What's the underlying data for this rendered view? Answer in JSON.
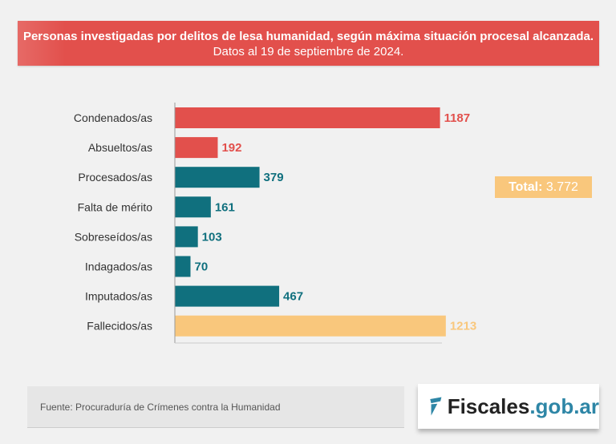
{
  "title": {
    "bold": "Personas investigadas por delitos de lesa humanidad, según máxima situación procesal alcanzada.",
    "normal": " Datos al 19 de septiembre de 2024."
  },
  "chart_data": {
    "type": "bar",
    "orientation": "horizontal",
    "categories": [
      "Condenados/as",
      "Absueltos/as",
      "Procesados/as",
      "Falta de mérito",
      "Sobreseídos/as",
      "Indagados/as",
      "Imputados/as",
      "Fallecidos/as"
    ],
    "values": [
      1187,
      192,
      379,
      161,
      103,
      70,
      467,
      1213
    ],
    "data_labels": [
      "1187",
      "192",
      "379",
      "161",
      "103",
      "70",
      "467",
      "1213"
    ],
    "colors": [
      "#e2504c",
      "#e2504c",
      "#10707e",
      "#10707e",
      "#10707e",
      "#10707e",
      "#10707e",
      "#f9c77c"
    ],
    "grid": false
  },
  "total": {
    "label": "Total:",
    "value": "3.772"
  },
  "source": "Fuente: Procuraduría de Crímenes contra la Humanidad",
  "logo": {
    "name": "Fiscales",
    "domain": ".gob.ar"
  }
}
